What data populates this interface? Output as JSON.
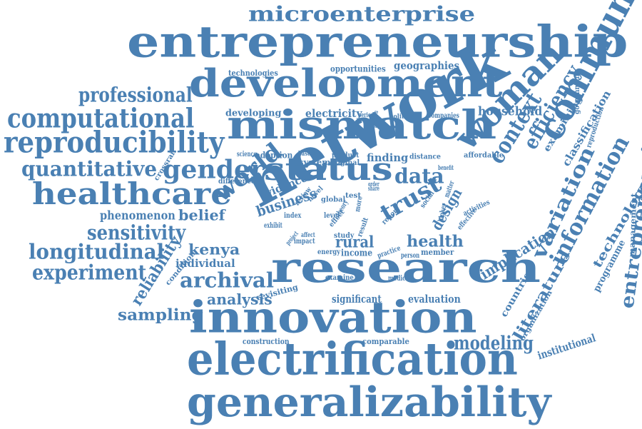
{
  "theme": {
    "word_color": "#4a80b3",
    "background": "#ffffff"
  },
  "words": [
    {
      "text": "microenterprise"
    },
    {
      "text": "entrepreneurship"
    },
    {
      "text": "development"
    },
    {
      "text": "mismatch"
    },
    {
      "text": "network"
    },
    {
      "text": "research"
    },
    {
      "text": "innovation"
    },
    {
      "text": "electrification"
    },
    {
      "text": "generalizability"
    },
    {
      "text": "community"
    },
    {
      "text": "woman"
    },
    {
      "text": "status"
    },
    {
      "text": "healthcare"
    },
    {
      "text": "reproducibility"
    },
    {
      "text": "computational"
    },
    {
      "text": "professional"
    },
    {
      "text": "quantitative"
    },
    {
      "text": "gender"
    },
    {
      "text": "world"
    },
    {
      "text": "trust"
    },
    {
      "text": "data"
    },
    {
      "text": "context"
    },
    {
      "text": "efficiency"
    },
    {
      "text": "information"
    },
    {
      "text": "variation"
    },
    {
      "text": "entrepreneurial"
    },
    {
      "text": "archival"
    },
    {
      "text": "longitudinal"
    },
    {
      "text": "experiment"
    },
    {
      "text": "sensitivity"
    },
    {
      "text": "sampling"
    },
    {
      "text": "analysis"
    },
    {
      "text": "reliability"
    },
    {
      "text": "modeling"
    },
    {
      "text": "literature"
    },
    {
      "text": "implication"
    },
    {
      "text": "opportunities"
    },
    {
      "text": "geographies"
    },
    {
      "text": "technologies"
    },
    {
      "text": "household"
    },
    {
      "text": "developing"
    },
    {
      "text": "electricity"
    },
    {
      "text": "classification"
    },
    {
      "text": "examining"
    },
    {
      "text": "government"
    },
    {
      "text": "reproduction"
    },
    {
      "text": "technology"
    },
    {
      "text": "programme"
    },
    {
      "text": "management"
    },
    {
      "text": "institutional"
    },
    {
      "text": "organization"
    },
    {
      "text": "countrie"
    },
    {
      "text": "kenya"
    },
    {
      "text": "individual"
    },
    {
      "text": "belief"
    },
    {
      "text": "phenomenon"
    },
    {
      "text": "business"
    },
    {
      "text": "evidence"
    },
    {
      "text": "rural"
    },
    {
      "text": "health"
    },
    {
      "text": "design"
    },
    {
      "text": "finding"
    },
    {
      "text": "adoption"
    },
    {
      "text": "difference"
    },
    {
      "text": "crossrail"
    },
    {
      "text": "condition"
    },
    {
      "text": "revisiting"
    },
    {
      "text": "significant"
    },
    {
      "text": "evaluation"
    },
    {
      "text": "construction"
    },
    {
      "text": "comparable"
    },
    {
      "text": "affordable"
    },
    {
      "text": "distance"
    },
    {
      "text": "product"
    },
    {
      "text": "system"
    },
    {
      "text": "original"
    },
    {
      "text": "global"
    },
    {
      "text": "test"
    },
    {
      "text": "energy"
    },
    {
      "text": "income"
    },
    {
      "text": "member"
    },
    {
      "text": "practice"
    },
    {
      "text": "person"
    },
    {
      "text": "examine"
    },
    {
      "text": "medical"
    },
    {
      "text": "activities"
    },
    {
      "text": "higher"
    },
    {
      "text": "effective"
    },
    {
      "text": "matter"
    },
    {
      "text": "social"
    },
    {
      "text": "report"
    },
    {
      "text": "result"
    },
    {
      "text": "more"
    },
    {
      "text": "study"
    },
    {
      "text": "effect"
    },
    {
      "text": "theory"
    },
    {
      "text": "level"
    },
    {
      "text": "index"
    },
    {
      "text": "review"
    },
    {
      "text": "novel"
    },
    {
      "text": "exhibit"
    },
    {
      "text": "impact"
    },
    {
      "text": "affect"
    },
    {
      "text": "project"
    },
    {
      "text": "science"
    },
    {
      "text": "baseline"
    },
    {
      "text": "period"
    },
    {
      "text": "politician"
    },
    {
      "text": "companies"
    },
    {
      "text": "benefit"
    },
    {
      "text": "position"
    },
    {
      "text": "order"
    },
    {
      "text": "share"
    }
  ]
}
